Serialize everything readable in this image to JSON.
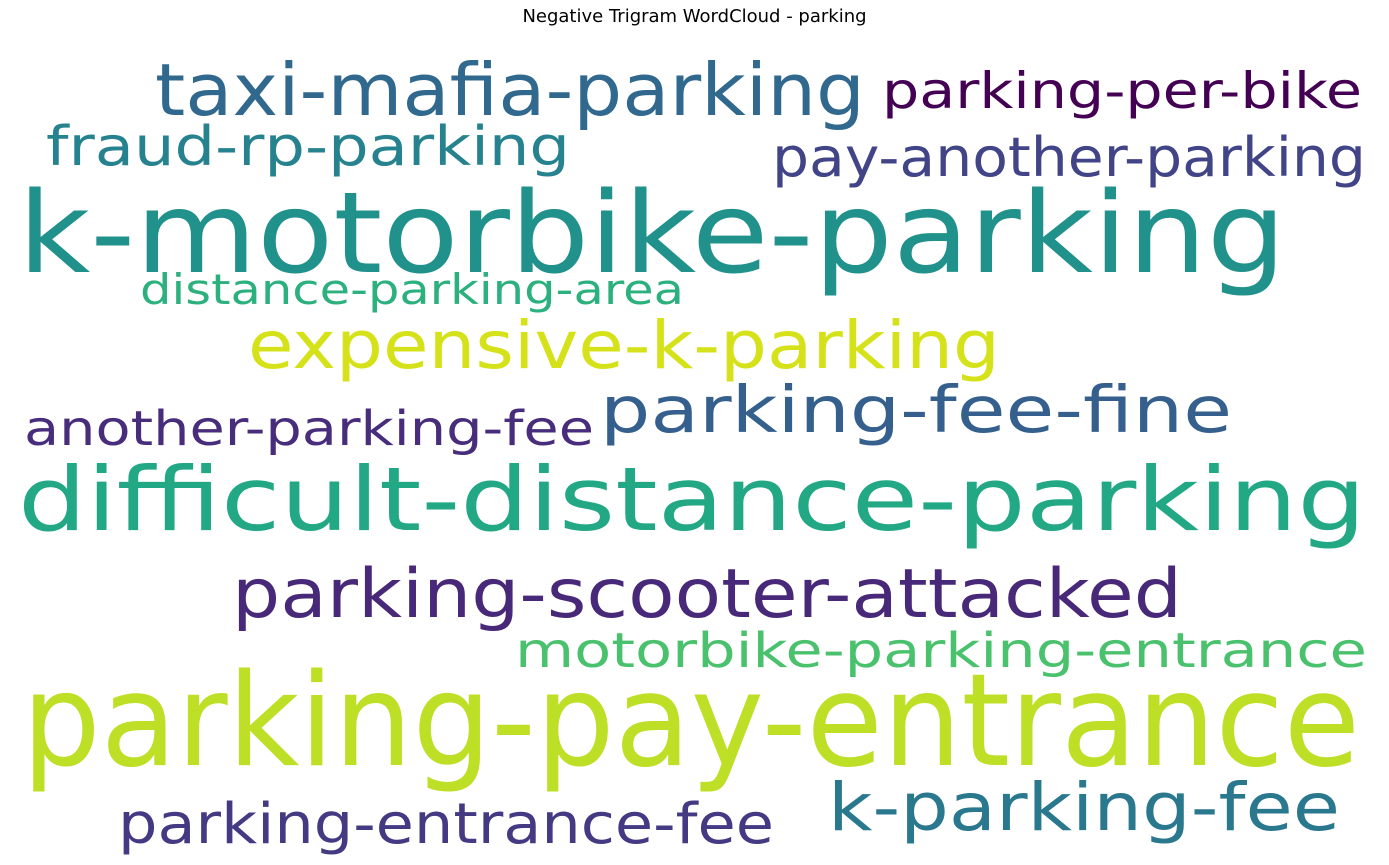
{
  "chart_data": {
    "type": "wordcloud",
    "title": "Negative Trigram WordCloud - parking",
    "words": [
      {
        "text": "parking-pay-entrance",
        "color": "#bddf26"
      },
      {
        "text": "k-motorbike-parking",
        "color": "#21918c"
      },
      {
        "text": "difficult-distance-parking",
        "color": "#22a884"
      },
      {
        "text": "taxi-mafia-parking",
        "color": "#31688e"
      },
      {
        "text": "parking-scooter-attacked",
        "color": "#482878"
      },
      {
        "text": "expensive-k-parking",
        "color": "#d5e21a"
      },
      {
        "text": "k-parking-fee",
        "color": "#2a788e"
      },
      {
        "text": "parking-fee-fine",
        "color": "#355f8d"
      },
      {
        "text": "parking-entrance-fee",
        "color": "#443983"
      },
      {
        "text": "pay-another-parking",
        "color": "#414487"
      },
      {
        "text": "parking-per-bike",
        "color": "#440154"
      },
      {
        "text": "fraud-rp-parking",
        "color": "#26828e"
      },
      {
        "text": "motorbike-parking-entrance",
        "color": "#4ac16d"
      },
      {
        "text": "another-parking-fee",
        "color": "#472d7b"
      },
      {
        "text": "distance-parking-area",
        "color": "#2cb17e"
      }
    ]
  }
}
